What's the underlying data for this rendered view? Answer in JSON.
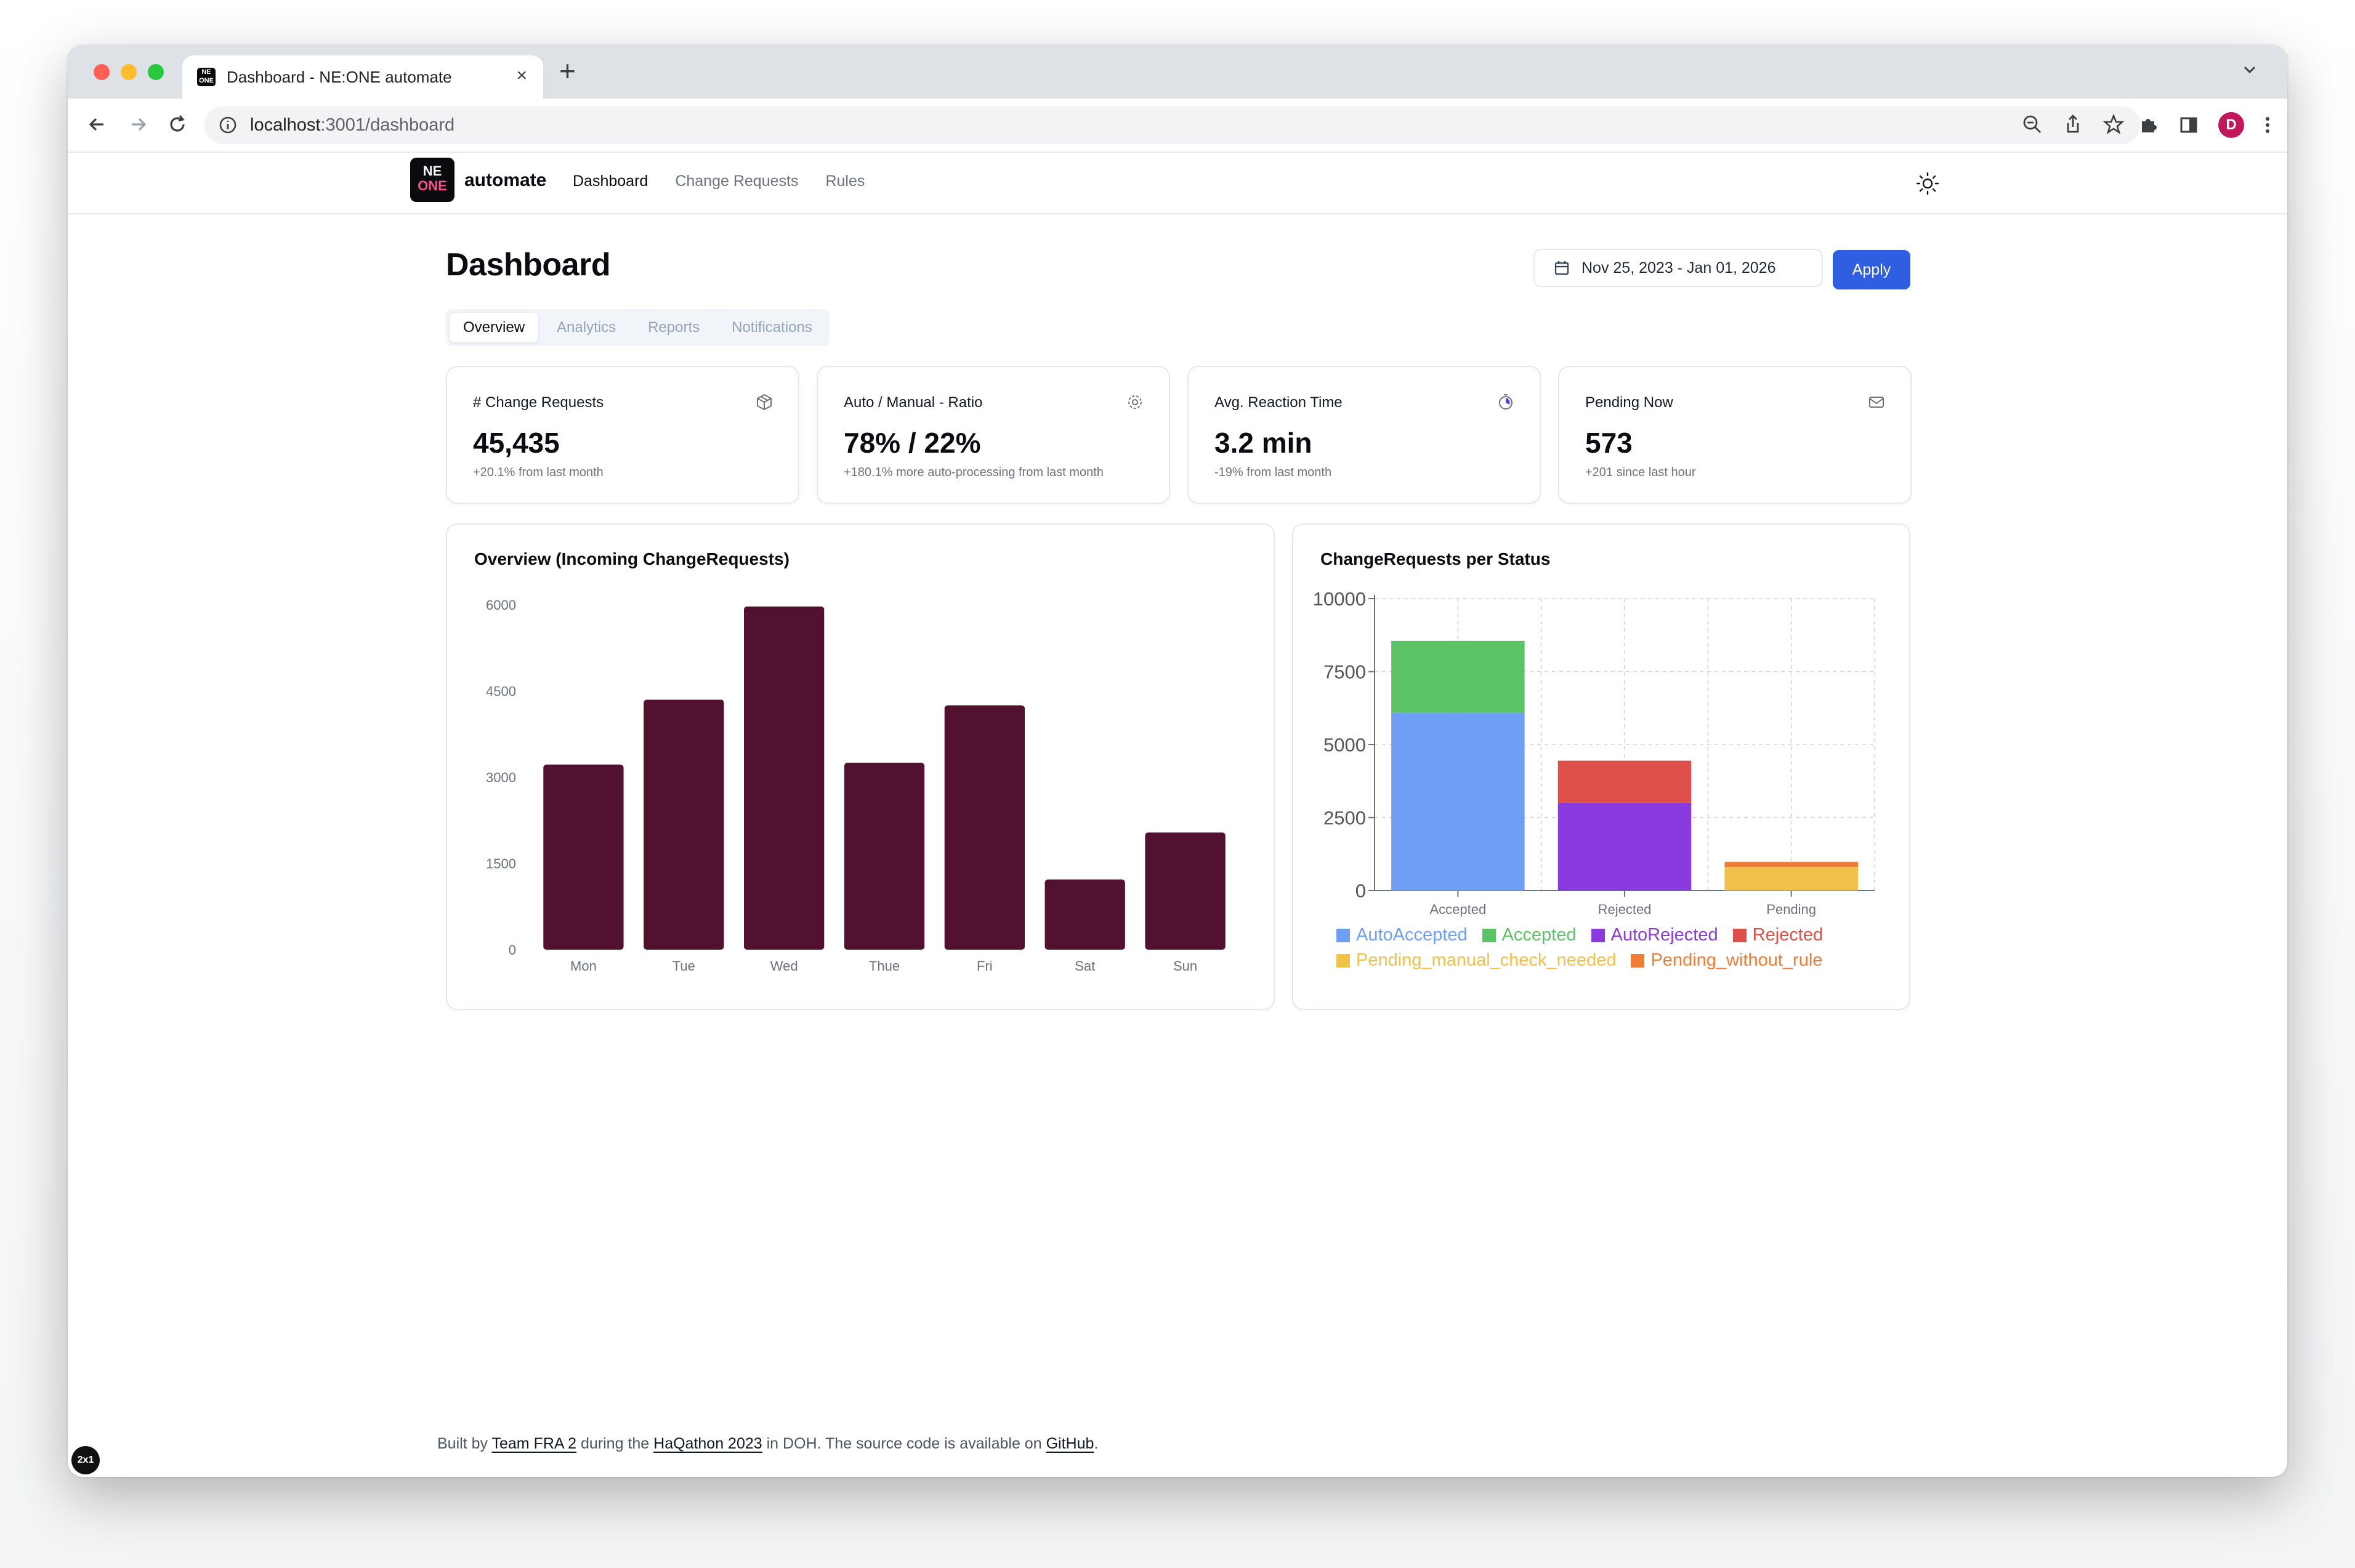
{
  "browser": {
    "tab_title": "Dashboard - NE:ONE automate",
    "favicon_text": "NE ONE",
    "url_host": "localhost",
    "url_path": ":3001/dashboard",
    "profile_initial": "D"
  },
  "header": {
    "logo_line1": "NE",
    "logo_line2": "ONE",
    "brand": "automate",
    "nav": [
      "Dashboard",
      "Change Requests",
      "Rules"
    ],
    "active_nav": "Dashboard"
  },
  "page": {
    "title": "Dashboard",
    "date_range": "Nov 25, 2023 - Jan 01, 2026",
    "apply_label": "Apply",
    "tabs": [
      "Overview",
      "Analytics",
      "Reports",
      "Notifications"
    ],
    "active_tab": "Overview"
  },
  "kpis": [
    {
      "label": "# Change Requests",
      "value": "45,435",
      "sub": "+20.1% from last month",
      "icon": "package-icon"
    },
    {
      "label": "Auto / Manual - Ratio",
      "value": "78% / 22%",
      "sub": "+180.1% more auto-processing from last month",
      "icon": "gear-icon"
    },
    {
      "label": "Avg. Reaction Time",
      "value": "3.2 min",
      "sub": "-19% from last month",
      "icon": "timer-icon"
    },
    {
      "label": "Pending Now",
      "value": "573",
      "sub": "+201 since last hour",
      "icon": "mail-icon"
    }
  ],
  "chart_data": [
    {
      "type": "bar",
      "title": "Overview (Incoming ChangeRequests)",
      "categories": [
        "Mon",
        "Tue",
        "Wed",
        "Thue",
        "Fri",
        "Sat",
        "Sun"
      ],
      "values": [
        3220,
        4350,
        5970,
        3250,
        4250,
        1220,
        2040
      ],
      "yticks": [
        0,
        1500,
        3000,
        4500,
        6000
      ],
      "ylim": [
        0,
        6000
      ],
      "color": "#52112f"
    },
    {
      "type": "bar",
      "stacked": true,
      "title": "ChangeRequests per Status",
      "categories": [
        "Accepted",
        "Rejected",
        "Pending"
      ],
      "yticks": [
        0,
        2500,
        5000,
        7500,
        10000
      ],
      "ylim": [
        0,
        10000
      ],
      "grid": true,
      "legend_position": "bottom",
      "series": [
        {
          "name": "AutoAccepted",
          "color": "#6f9ff5",
          "values": [
            6100,
            0,
            0
          ]
        },
        {
          "name": "Accepted",
          "color": "#5bc466",
          "values": [
            2450,
            0,
            0
          ]
        },
        {
          "name": "AutoRejected",
          "color": "#8a3be0",
          "values": [
            0,
            3000,
            0
          ]
        },
        {
          "name": "Rejected",
          "color": "#e0504a",
          "values": [
            0,
            1450,
            0
          ]
        },
        {
          "name": "Pending_manual_check_needed",
          "color": "#f2c14a",
          "values": [
            0,
            0,
            800
          ]
        },
        {
          "name": "Pending_without_rule",
          "color": "#ee7d37",
          "values": [
            0,
            0,
            180
          ]
        }
      ]
    }
  ],
  "footer": {
    "prefix": "Built by ",
    "team_link": "Team FRA 2",
    "middle": " during the ",
    "event_link": "HaQathon 2023",
    "suffix": " in DOH. The source code is available on ",
    "github_link": "GitHub",
    "end": "."
  },
  "badge_text": "2x1"
}
